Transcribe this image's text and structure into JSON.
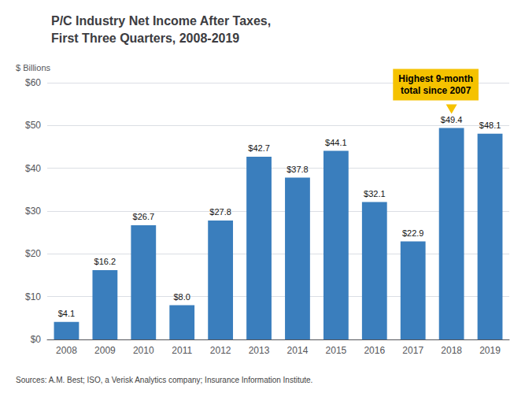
{
  "chart_data": {
    "type": "bar",
    "title": "P/C Industry Net Income After Taxes,\nFirst Three Quarters, 2008-2019",
    "ylabel": "$ Billions",
    "source": "Sources: A.M. Best; ISO, a Verisk Analytics company; Insurance Information Institute.",
    "categories": [
      "2008",
      "2009",
      "2010",
      "2011",
      "2012",
      "2013",
      "2014",
      "2015",
      "2016",
      "2017",
      "2018",
      "2019"
    ],
    "values": [
      4.1,
      16.2,
      26.7,
      8.0,
      27.8,
      42.7,
      37.8,
      44.1,
      32.1,
      22.9,
      49.4,
      48.1
    ],
    "value_labels": [
      "$4.1",
      "$16.2",
      "$26.7",
      "$8.0",
      "$27.8",
      "$42.7",
      "$37.8",
      "$44.1",
      "$32.1",
      "$22.9",
      "$49.4",
      "$48.1"
    ],
    "data_labels": true,
    "color": "#3A7EBD",
    "ylim": [
      0,
      60
    ],
    "yticks": [
      {
        "value": 0,
        "label": "$0"
      },
      {
        "value": 10,
        "label": "$10"
      },
      {
        "value": 20,
        "label": "$20"
      },
      {
        "value": 30,
        "label": "$30"
      },
      {
        "value": 40,
        "label": "$40"
      },
      {
        "value": 50,
        "label": "$50"
      },
      {
        "value": 60,
        "label": "$60"
      }
    ],
    "grid": true,
    "annotations": [
      {
        "text": "Highest 9-month\ntotal since 2007",
        "x": "2018",
        "color": "#F5C200"
      }
    ]
  }
}
